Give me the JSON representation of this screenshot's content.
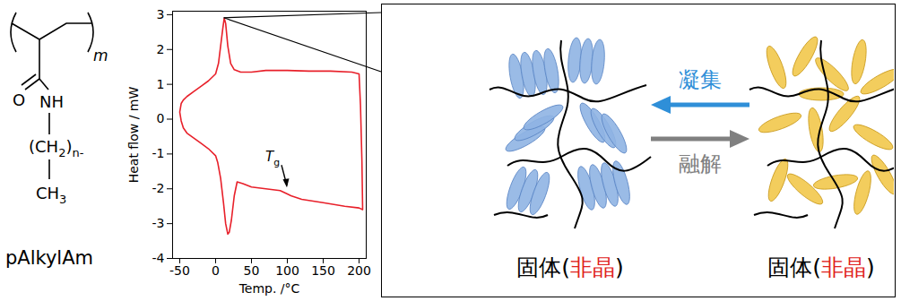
{
  "structure": {
    "repeat_subscript": "m",
    "carbonyl_oxygen": "O",
    "amide": "NH",
    "chain": [
      {
        "text": "(CH"
      },
      {
        "text": "2",
        "sub": true
      },
      {
        "text": ")"
      },
      {
        "text": "n-",
        "sub": true
      }
    ],
    "terminal": [
      {
        "text": "CH"
      },
      {
        "text": "3",
        "sub": true
      }
    ],
    "name": "pAlkylAm"
  },
  "chart_data": {
    "type": "line",
    "x_label": "Temp. /°C",
    "y_label": "Heat flow / mW",
    "xlim": [
      -60,
      210
    ],
    "ylim": [
      -4,
      3.1
    ],
    "xticks": [
      -50,
      0,
      50,
      100,
      150,
      200
    ],
    "yticks": [
      -4,
      -3,
      -2,
      -1,
      0,
      1,
      2,
      3
    ],
    "color": "#e8202a",
    "x": [
      -50,
      -48,
      -45,
      -40,
      -30,
      -20,
      -10,
      0,
      4,
      7,
      10,
      12,
      14,
      17,
      21,
      26,
      35,
      50,
      70,
      100,
      130,
      160,
      190,
      200,
      202,
      204,
      205,
      200,
      180,
      150,
      120,
      105,
      100,
      90,
      70,
      50,
      38,
      30,
      26,
      22,
      19,
      17,
      14,
      11,
      7,
      3,
      0,
      -10,
      -20,
      -30,
      -40,
      -45,
      -48,
      -50
    ],
    "values": [
      0.2,
      0.45,
      0.55,
      0.65,
      0.8,
      0.95,
      1.1,
      1.3,
      1.6,
      2.1,
      2.6,
      2.9,
      2.75,
      2.1,
      1.6,
      1.42,
      1.35,
      1.35,
      1.4,
      1.4,
      1.38,
      1.38,
      1.35,
      1.3,
      0.4,
      -1.2,
      -2.6,
      -2.55,
      -2.5,
      -2.4,
      -2.3,
      -2.2,
      -2.15,
      -2.05,
      -2.0,
      -1.95,
      -1.85,
      -1.8,
      -2.2,
      -2.9,
      -3.25,
      -3.3,
      -3.0,
      -2.4,
      -1.7,
      -1.25,
      -1.05,
      -0.85,
      -0.7,
      -0.55,
      -0.4,
      -0.25,
      -0.05,
      0.2
    ],
    "annotations": [
      {
        "text": [
          {
            "text": "T",
            "italic": true
          },
          {
            "text": "g",
            "sub": true
          }
        ],
        "x": 100,
        "y": -2.0
      }
    ]
  },
  "diagram": {
    "arrows": [
      {
        "label": "凝集",
        "color": "#2f8fd8",
        "direction": "left"
      },
      {
        "label": "融解",
        "color": "#808080",
        "direction": "right"
      }
    ],
    "states": [
      {
        "prefix": "固体(",
        "emphasis": "非晶",
        "suffix": ")",
        "color": "#8fb4e3",
        "emphasis_color": "#e02020"
      },
      {
        "prefix": "固体(",
        "emphasis": "非晶",
        "suffix": ")",
        "color": "#f2c84b",
        "emphasis_color": "#e02020"
      }
    ]
  }
}
